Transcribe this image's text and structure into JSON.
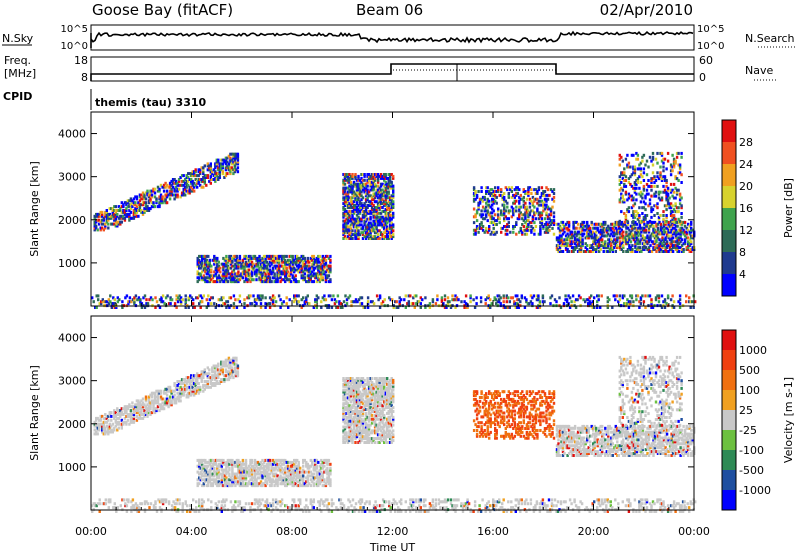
{
  "header": {
    "station": "Goose Bay (fitACF)",
    "beam": "Beam 06",
    "date": "02/Apr/2010"
  },
  "top_labels": {
    "nsky": "N.Sky",
    "nsearch": "N.Search",
    "freq": "Freq.",
    "freq_unit": "[MHz]",
    "nave": "Nave",
    "cpid": "CPID",
    "program": "themis (tau) 3310",
    "noise_ticks": [
      "10^5",
      "10^0"
    ],
    "freq_ticks": [
      "18",
      "8"
    ],
    "nave_ticks": [
      "60",
      "0"
    ]
  },
  "chart_data": [
    {
      "type": "heatmap",
      "name": "power",
      "ylabel": "Slant Range [km]",
      "xlabel": "Time UT",
      "x_ticks": [
        "00:00",
        "04:00",
        "08:00",
        "12:00",
        "16:00",
        "20:00",
        "00:00"
      ],
      "x_range_hours": [
        0,
        24
      ],
      "ylim": [
        0,
        4500
      ],
      "y_ticks": [
        1000,
        2000,
        3000,
        4000
      ],
      "colorbar": {
        "label": "Power [dB]",
        "ticks": [
          "28",
          "24",
          "20",
          "16",
          "12",
          "8",
          "4"
        ],
        "colors": [
          "#0000ff",
          "#1f3a8f",
          "#2e6b57",
          "#3fa34d",
          "#d7d22e",
          "#f0a020",
          "#f05020",
          "#e01010"
        ]
      }
    },
    {
      "type": "heatmap",
      "name": "velocity",
      "ylabel": "Slant Range [km]",
      "xlabel": "Time UT",
      "x_ticks": [
        "00:00",
        "04:00",
        "08:00",
        "12:00",
        "16:00",
        "20:00",
        "00:00"
      ],
      "x_range_hours": [
        0,
        24
      ],
      "ylim": [
        0,
        4500
      ],
      "y_ticks": [
        1000,
        2000,
        3000,
        4000
      ],
      "colorbar": {
        "label": "Velocity [m s-1]",
        "ticks": [
          "1000",
          "500",
          "100",
          "25",
          "-25",
          "-100",
          "-500",
          "-1000"
        ],
        "colors": [
          "#0000ff",
          "#1f4fa0",
          "#2e8a55",
          "#6cc040",
          "#c8c8c8",
          "#f0a020",
          "#f07010",
          "#f04010",
          "#e01010"
        ]
      }
    }
  ]
}
